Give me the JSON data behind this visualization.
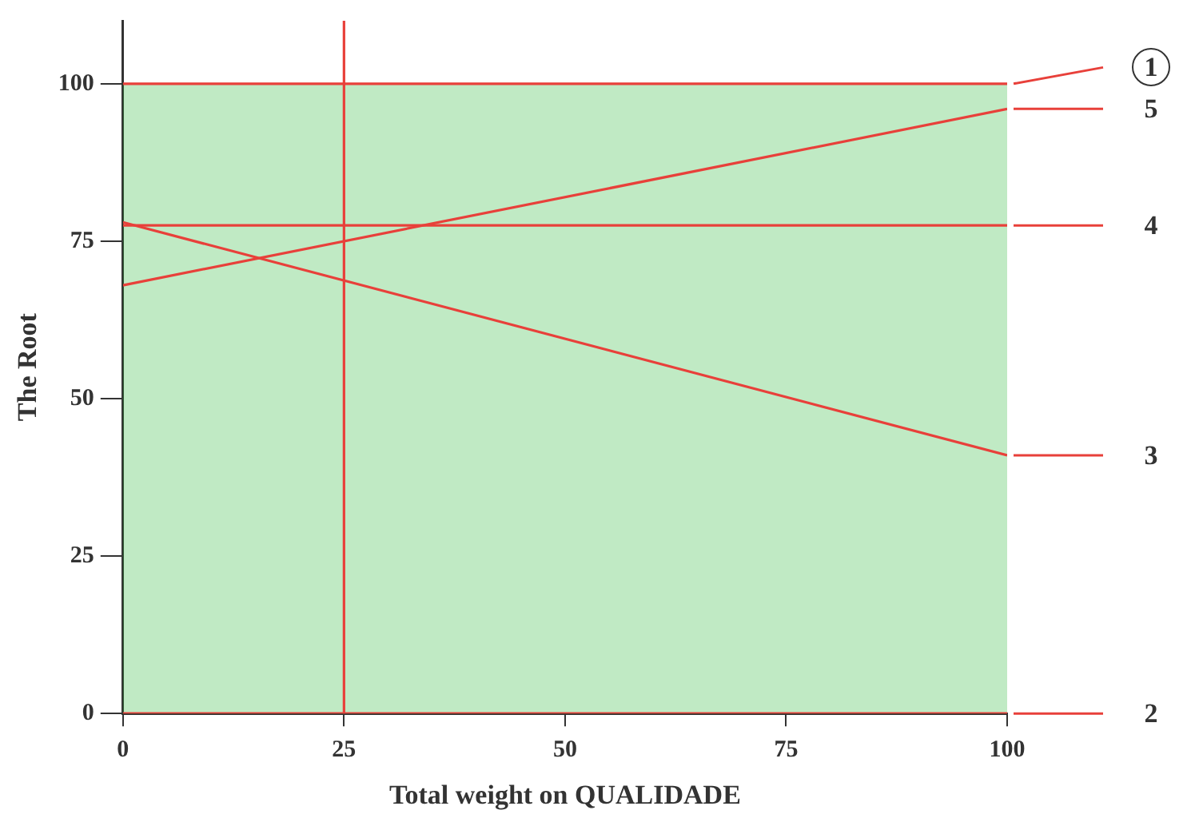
{
  "chart_data": {
    "type": "line",
    "xlabel": "Total weight on QUALIDADE",
    "ylabel": "The Root",
    "x": [
      0,
      100
    ],
    "series": [
      {
        "name": "1",
        "color": "#e8403a",
        "values": [
          100,
          100
        ]
      },
      {
        "name": "5",
        "color": "#e8403a",
        "values": [
          68,
          96
        ]
      },
      {
        "name": "4",
        "color": "#e8403a",
        "values": [
          77.5,
          77.5
        ]
      },
      {
        "name": "3",
        "color": "#e8403a",
        "values": [
          78,
          41
        ]
      },
      {
        "name": "2",
        "color": "#e8403a",
        "values": [
          0,
          0
        ]
      }
    ],
    "xlim": [
      0,
      100
    ],
    "xticks": [
      0,
      25,
      50,
      75,
      100
    ],
    "ylim": [
      0,
      110
    ],
    "yticks": [
      0,
      25,
      50,
      75,
      100
    ],
    "ref_lines": [
      {
        "axis": "x",
        "value": 25,
        "color": "#e8403a"
      }
    ],
    "bands": [
      {
        "axis": "y",
        "from": 0,
        "to": 100,
        "color": "#2db83d"
      }
    ],
    "grid": false,
    "legend": "right",
    "marker": "none",
    "line_style": "solid"
  }
}
